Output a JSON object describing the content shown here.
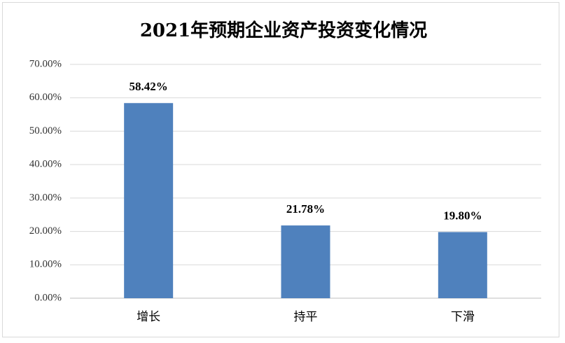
{
  "chart_data": {
    "type": "bar",
    "title": "2021年预期企业资产投资变化情况",
    "categories": [
      "增长",
      "持平",
      "下滑"
    ],
    "values": [
      58.42,
      21.78,
      19.8
    ],
    "value_labels": [
      "58.42%",
      "21.78%",
      "19.80%"
    ],
    "color": "#4f81bd",
    "ylim": [
      0,
      70
    ],
    "yticks": [
      {
        "value": 0,
        "label": "0.00%"
      },
      {
        "value": 10,
        "label": "10.00%"
      },
      {
        "value": 20,
        "label": "20.00%"
      },
      {
        "value": 30,
        "label": "30.00%"
      },
      {
        "value": 40,
        "label": "40.00%"
      },
      {
        "value": 50,
        "label": "50.00%"
      },
      {
        "value": 60,
        "label": "60.00%"
      },
      {
        "value": 70,
        "label": "70.00%"
      }
    ],
    "grid": true
  }
}
